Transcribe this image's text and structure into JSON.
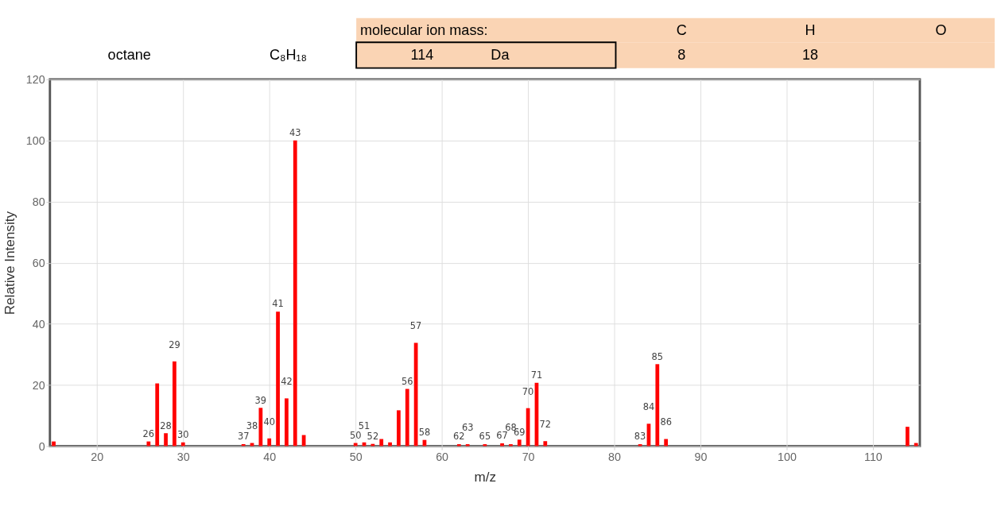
{
  "chart_data": {
    "type": "bar",
    "x": [
      15,
      26,
      27,
      28,
      29,
      30,
      37,
      38,
      39,
      40,
      41,
      42,
      43,
      44,
      50,
      51,
      52,
      53,
      54,
      55,
      56,
      57,
      58,
      62,
      63,
      65,
      67,
      68,
      69,
      70,
      71,
      72,
      83,
      84,
      85,
      86,
      114,
      115
    ],
    "values": [
      1.5,
      1.5,
      20.5,
      4.2,
      27.7,
      1.2,
      0.6,
      1.0,
      12.5,
      2.5,
      44,
      15.6,
      100,
      3.6,
      1.0,
      1.2,
      0.7,
      2.3,
      1.2,
      11.7,
      18.7,
      33.8,
      2.0,
      0.6,
      0.6,
      0.6,
      0.9,
      0.6,
      2.1,
      12.4,
      20.7,
      1.6,
      0.6,
      7.3,
      26.8,
      2.3,
      6.3,
      1.0
    ],
    "color": "#ff0000",
    "xlabel": "m/z",
    "ylabel": "Relative Intensity",
    "xlim": [
      15,
      115
    ],
    "xticks": [
      20,
      30,
      40,
      50,
      60,
      70,
      80,
      90,
      100,
      110
    ],
    "ylim": [
      0,
      120
    ],
    "yticks": [
      0,
      20,
      40,
      60,
      80,
      100,
      120
    ],
    "grid": true,
    "annotations": [
      "octane",
      "C₈H₁₈",
      "molecular ion mass:",
      "114",
      "Da",
      "C",
      "H",
      "O",
      "8",
      "18",
      {
        "text": "26",
        "x": 26,
        "y": 1.5
      },
      {
        "text": "28",
        "x": 28,
        "y": 4.2
      },
      {
        "text": "29",
        "x": 29,
        "y": 27.7
      },
      {
        "text": "30",
        "x": 30,
        "y": 1.2
      },
      {
        "text": "37",
        "x": 37,
        "y": 0.6
      },
      {
        "text": "38",
        "x": 38,
        "y": 1.0
      },
      {
        "text": "39",
        "x": 39,
        "y": 12.5
      },
      {
        "text": "40",
        "x": 40,
        "y": 2.5
      },
      {
        "text": "41",
        "x": 41,
        "y": 44
      },
      {
        "text": "42",
        "x": 42,
        "y": 15.6
      },
      {
        "text": "43",
        "x": 43,
        "y": 100
      },
      {
        "text": "50",
        "x": 50,
        "y": 1.0
      },
      {
        "text": "51",
        "x": 51,
        "y": 1.2
      },
      {
        "text": "52",
        "x": 52,
        "y": 0.7
      },
      {
        "text": "56",
        "x": 56,
        "y": 18.7
      },
      {
        "text": "57",
        "x": 57,
        "y": 33.8
      },
      {
        "text": "58",
        "x": 58,
        "y": 2.0
      },
      {
        "text": "62",
        "x": 62,
        "y": 0.6
      },
      {
        "text": "63",
        "x": 63,
        "y": 0.6
      },
      {
        "text": "65",
        "x": 65,
        "y": 0.6
      },
      {
        "text": "67",
        "x": 67,
        "y": 0.9
      },
      {
        "text": "68",
        "x": 68,
        "y": 0.6
      },
      {
        "text": "69",
        "x": 69,
        "y": 2.1
      },
      {
        "text": "70",
        "x": 70,
        "y": 12.4
      },
      {
        "text": "71",
        "x": 71,
        "y": 20.7
      },
      {
        "text": "72",
        "x": 72,
        "y": 1.6
      },
      {
        "text": "83",
        "x": 83,
        "y": 0.6
      },
      {
        "text": "84",
        "x": 84,
        "y": 7.3
      },
      {
        "text": "85",
        "x": 85,
        "y": 26.8
      },
      {
        "text": "86",
        "x": 86,
        "y": 2.3
      }
    ]
  }
}
